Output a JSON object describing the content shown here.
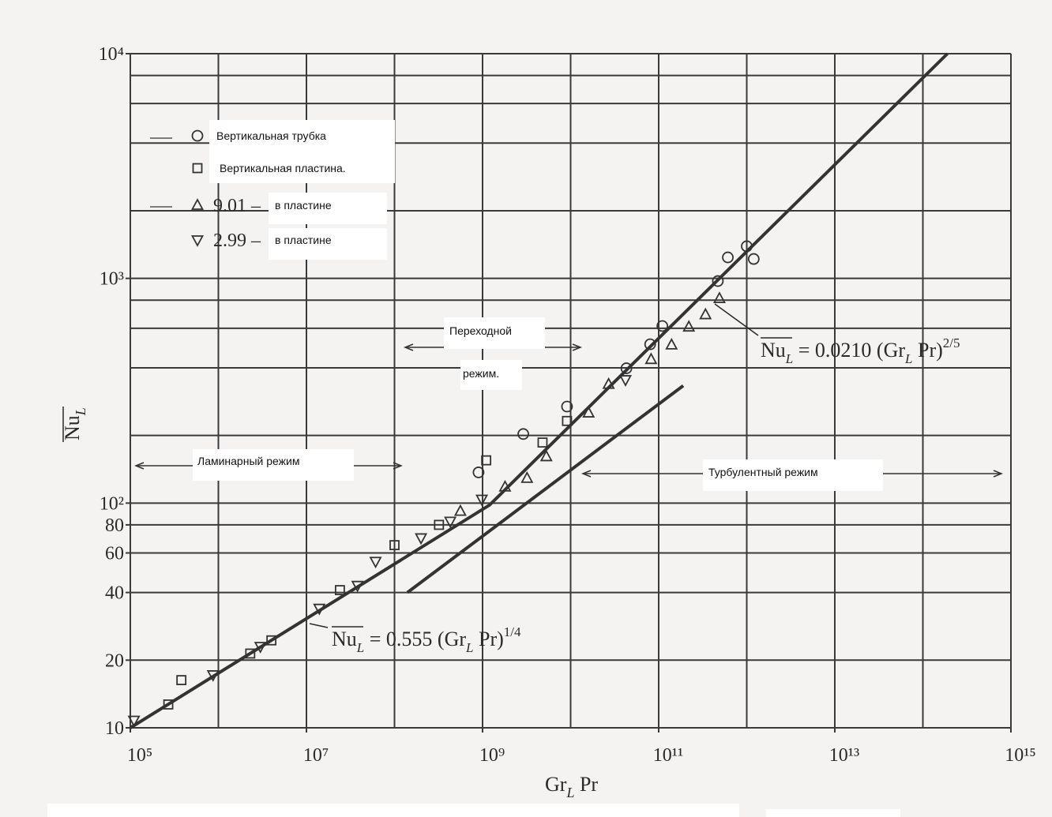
{
  "chart_data": {
    "type": "scatter",
    "log_x": true,
    "log_y": true,
    "grid": true,
    "xlim": [
      100000,
      1000000000000000
    ],
    "ylim": [
      10,
      10000
    ],
    "xticks": [
      {
        "value": 100000,
        "label": "10⁵"
      },
      {
        "value": 10000000,
        "label": "10⁷"
      },
      {
        "value": 1000000000,
        "label": "10⁹"
      },
      {
        "value": 100000000000,
        "label": "10¹¹"
      },
      {
        "value": 10000000000000,
        "label": "10¹³"
      },
      {
        "value": 1000000000000000,
        "label": "10¹⁵"
      }
    ],
    "yticks": [
      10,
      20,
      40,
      60,
      80,
      {
        "value": 100,
        "label": "10²"
      },
      {
        "value": 1000,
        "label": "10³"
      },
      {
        "value": 10000,
        "label": "10⁴"
      }
    ],
    "xgrid": [
      100000,
      1000000,
      10000000,
      100000000,
      1000000000,
      10000000000,
      100000000000,
      1000000000000,
      10000000000000,
      100000000000000,
      1000000000000000
    ],
    "ygrid": [
      10,
      20,
      40,
      60,
      80,
      100,
      200,
      400,
      600,
      800,
      1000,
      2000,
      4000,
      6000,
      8000,
      10000
    ],
    "x_label": [
      "Gr",
      "L",
      " Pr"
    ],
    "y_label": [
      "Nu",
      "L"
    ],
    "series": [
      {
        "name": "Вертикальная трубка",
        "marker": "circle",
        "color": "#333333",
        "x": [
          900000000,
          2900000000,
          9100000000,
          43000000000,
          80000000000,
          110000000000,
          470000000000,
          610000000000,
          1000000000000,
          1200000000000
        ],
        "values": [
          137,
          203,
          269,
          398,
          509,
          614,
          973,
          1240,
          1390,
          1220
        ]
      },
      {
        "name": "Вертикальная пластина.",
        "marker": "square",
        "color": "#333333",
        "x": [
          270000,
          380000,
          2300000,
          4000000,
          24000000,
          100000000,
          320000000,
          1100000000,
          4800000000,
          9100000000
        ],
        "values": [
          12.7,
          16.3,
          21.4,
          24.5,
          41,
          65,
          80,
          155,
          186,
          232
        ]
      },
      {
        "name": "в  пластине",
        "label_prefix": "9.01 –",
        "marker": "triangle-up",
        "color": "#333333",
        "x": [
          560000000,
          1800000000,
          3200000000,
          5300000000,
          16000000000,
          27000000000,
          82000000000,
          140000000000,
          220000000000,
          340000000000,
          490000000000
        ],
        "values": [
          92,
          118,
          129,
          161,
          252,
          338,
          436,
          506,
          608,
          690,
          814
        ]
      },
      {
        "name": "в пластине",
        "label_prefix": "2.99 –",
        "marker": "triangle-down",
        "color": "#333333",
        "x": [
          110000,
          870000,
          3000000,
          14000000,
          38000000,
          61000000,
          200000000,
          430000000,
          980000000,
          42000000000
        ],
        "values": [
          10.8,
          17.2,
          23,
          34,
          43,
          55,
          70,
          83,
          104,
          354
        ]
      }
    ],
    "lines": [
      {
        "color": "#333333",
        "x": [
          100000,
          1200000000,
          190000000000000
        ],
        "values": [
          10,
          98,
          10000
        ]
      },
      {
        "color": "#333333",
        "x": [
          140000000,
          190000000000
        ],
        "values": [
          40,
          333
        ]
      }
    ],
    "equation_turbulent": [
      "Nu",
      "L",
      " = 0.0210 (Gr",
      "L",
      " Pr)",
      "2/5"
    ],
    "equation_laminar": [
      "Nu",
      "L",
      "  = 0.555 (Gr",
      "L",
      " Pr)",
      "1/4"
    ],
    "annotations": [
      "Переходной",
      "режим.",
      "Ламинарный режим",
      "Турбулентный режим"
    ]
  }
}
